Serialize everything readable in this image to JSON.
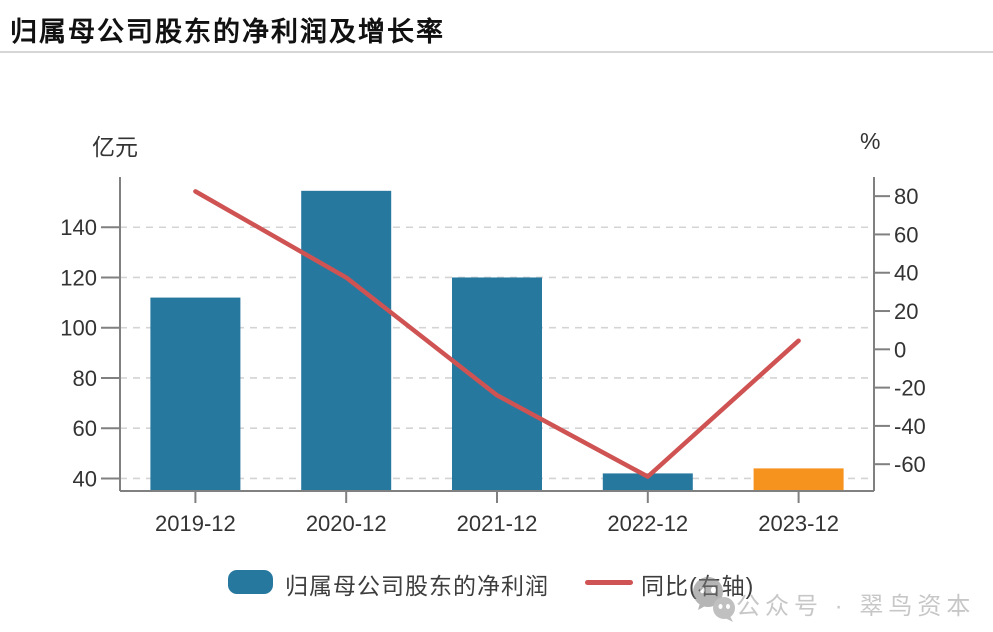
{
  "header": {
    "title": "归属母公司股东的净利润及增长率"
  },
  "chart_data": {
    "type": "combo",
    "categories": [
      "2019-12",
      "2020-12",
      "2021-12",
      "2022-12",
      "2023-12"
    ],
    "series": [
      {
        "name": "归属母公司股东的净利润",
        "type": "bar",
        "axis": "left",
        "unit": "亿元",
        "values": [
          112,
          154.5,
          120,
          42,
          44
        ],
        "colors": [
          "#27789f",
          "#27789f",
          "#27789f",
          "#27789f",
          "#f6921e"
        ]
      },
      {
        "name": "同比(右轴)",
        "type": "line",
        "axis": "right",
        "unit": "%",
        "values": [
          82.5,
          37.5,
          -24,
          -66.5,
          4.5
        ],
        "color": "#cf5352"
      }
    ],
    "left_axis": {
      "label": "亿元",
      "ticks": [
        40,
        60,
        80,
        100,
        120,
        140
      ],
      "min": 35,
      "max": 160
    },
    "right_axis": {
      "label": "%",
      "ticks": [
        -60,
        -40,
        -20,
        0,
        20,
        40,
        60,
        80
      ],
      "min": -74,
      "max": 90
    },
    "grid": {
      "show": true,
      "style": "dashed",
      "based_on": "left"
    },
    "legend_position": "bottom"
  },
  "watermark": {
    "text": "公众号 · 翠鸟资本"
  },
  "colors": {
    "bar_blue": "#27789f",
    "bar_orange": "#f6921e",
    "line_red": "#cf5352",
    "axis_line": "#808080",
    "grid_line": "#d4d4d4",
    "tick_text": "#333333",
    "title_text": "#111111",
    "watermark_text": "#9b9b9b"
  }
}
